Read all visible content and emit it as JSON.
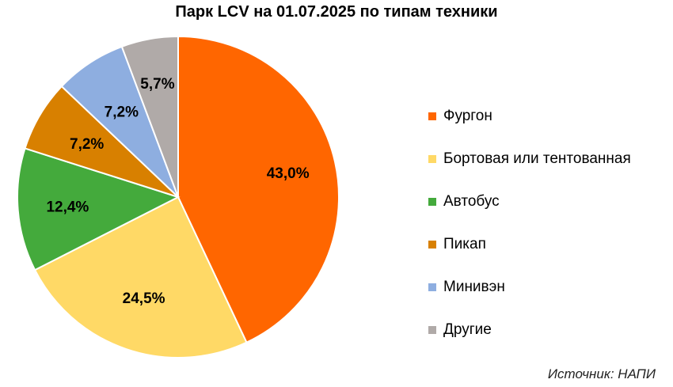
{
  "title": "Парк LCV на 01.07.2025 по типам техники",
  "source": "Источник: НАПИ",
  "chart_data": {
    "type": "pie",
    "title": "Парк LCV на 01.07.2025 по типам техники",
    "legend_position": "right",
    "start_angle": "12 o'clock, clockwise",
    "slices": [
      {
        "name": "Фургон",
        "value": 43.0,
        "label": "43,0%",
        "color": "#ff6600"
      },
      {
        "name": "Бортовая или тентованная",
        "value": 24.5,
        "label": "24,5%",
        "color": "#ffd966"
      },
      {
        "name": "Автобус",
        "value": 12.4,
        "label": "12,4%",
        "color": "#44aa3c"
      },
      {
        "name": "Пикап",
        "value": 7.2,
        "label": "7,2%",
        "color": "#d88000"
      },
      {
        "name": "Минивэн",
        "value": 7.2,
        "label": "7,2%",
        "color": "#8eaee0"
      },
      {
        "name": "Другие",
        "value": 5.7,
        "label": "5,7%",
        "color": "#b0aaa8"
      }
    ]
  }
}
